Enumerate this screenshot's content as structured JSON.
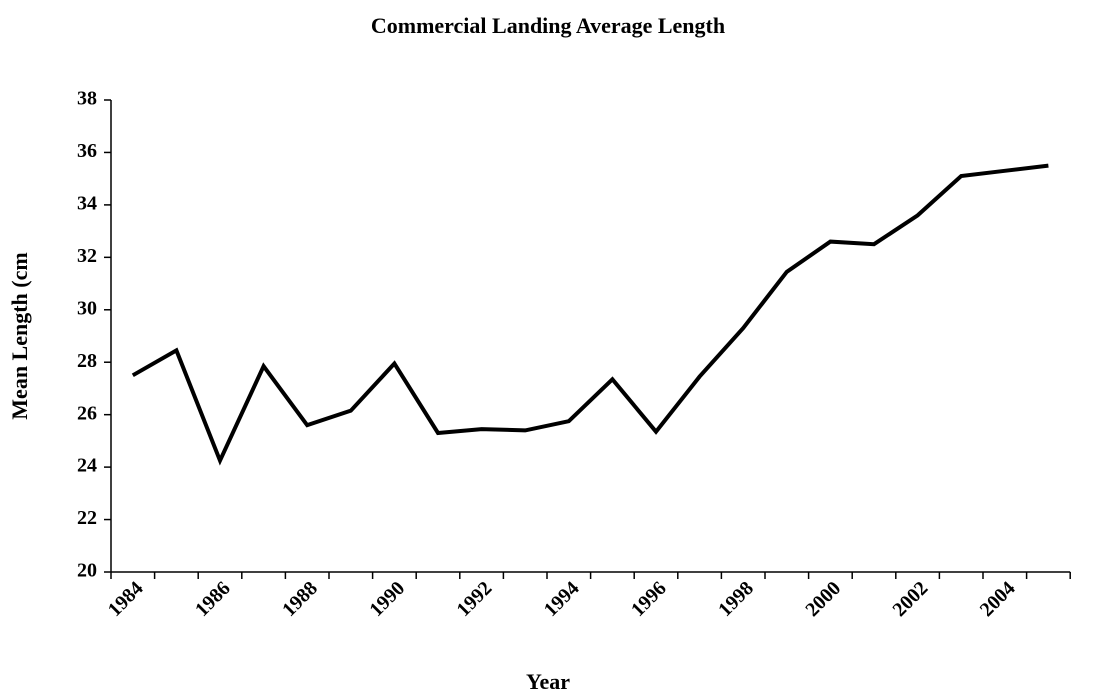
{
  "chart_data": {
    "type": "line",
    "title": "Commercial Landing Average Length",
    "x_label": "Year",
    "y_label": "Mean Length (cm",
    "categories": [
      "1984",
      null,
      "1986",
      null,
      "1988",
      null,
      "1990",
      null,
      "1992",
      null,
      "1994",
      null,
      "1996",
      null,
      "1998",
      null,
      "2000",
      null,
      "2002",
      null,
      "2004",
      null
    ],
    "values": [
      27.5,
      28.45,
      24.25,
      27.85,
      25.6,
      26.15,
      27.95,
      25.3,
      25.45,
      25.4,
      25.75,
      27.35,
      25.35,
      27.45,
      29.3,
      31.45,
      32.6,
      32.5,
      33.6,
      35.1,
      35.3,
      35.5
    ],
    "color": "#000000",
    "ylim": [
      20,
      38
    ],
    "yticks": [
      20,
      22,
      24,
      26,
      28,
      30,
      32,
      34,
      36,
      38
    ],
    "grid": false
  }
}
